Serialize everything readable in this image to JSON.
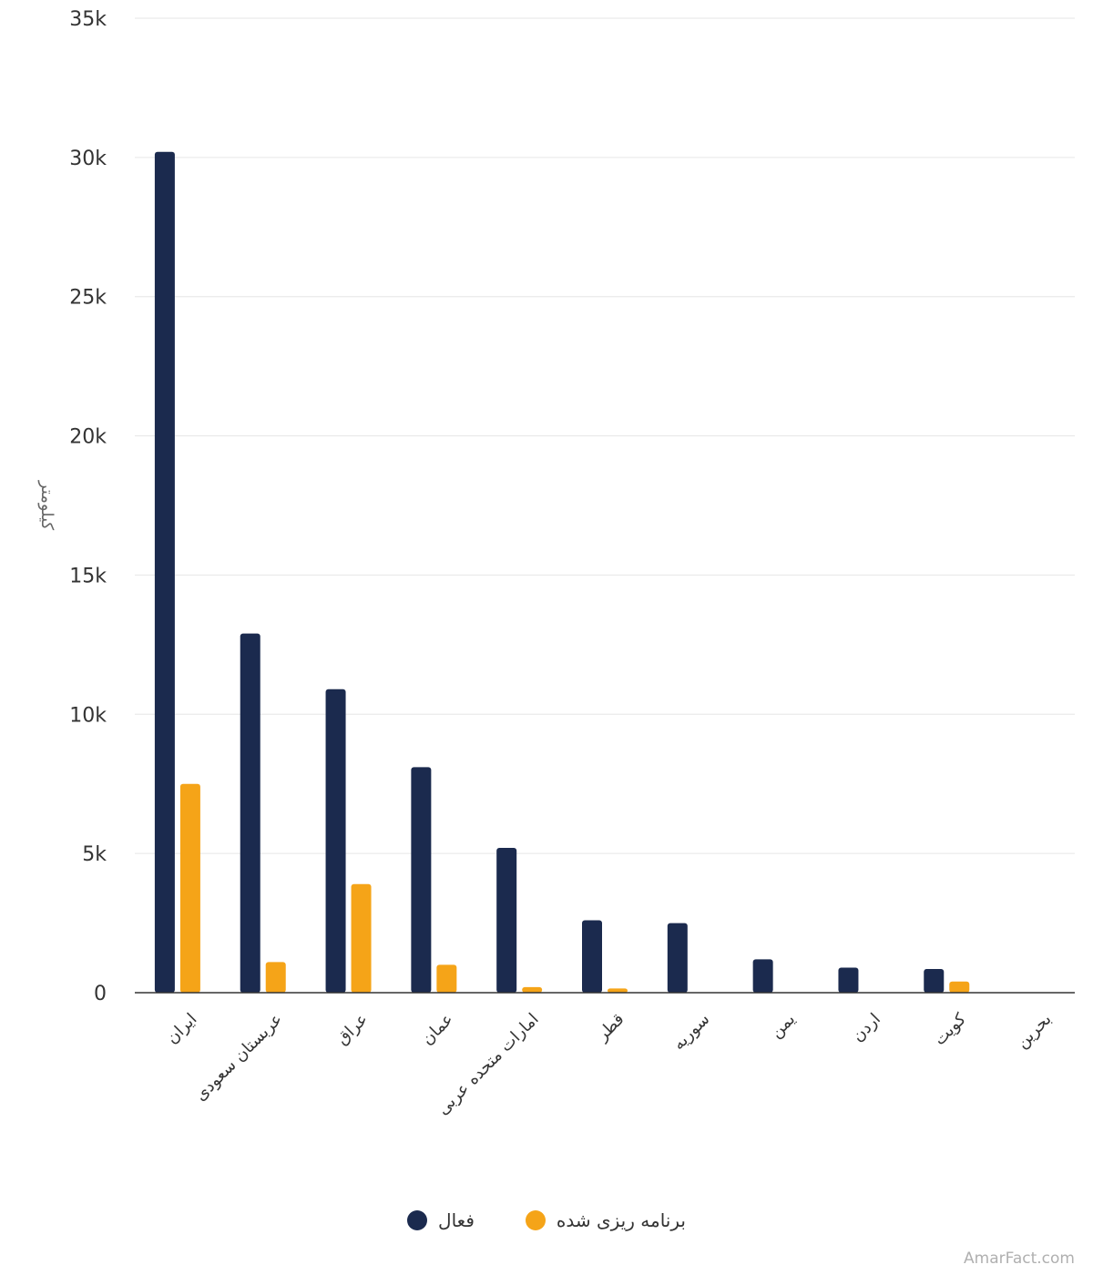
{
  "chart_data": {
    "type": "bar",
    "ylabel": "کیلومتر",
    "ylim": [
      0,
      35000
    ],
    "yticks": [
      {
        "value": 0,
        "label": "0"
      },
      {
        "value": 5000,
        "label": "5k"
      },
      {
        "value": 10000,
        "label": "10k"
      },
      {
        "value": 15000,
        "label": "15k"
      },
      {
        "value": 20000,
        "label": "20k"
      },
      {
        "value": 25000,
        "label": "25k"
      },
      {
        "value": 30000,
        "label": "30k"
      },
      {
        "value": 35000,
        "label": "35k"
      }
    ],
    "categories": [
      "ایران",
      "عربستان سعودی",
      "عراق",
      "عمان",
      "امارات متحده عربی",
      "قطر",
      "سوریه",
      "یمن",
      "اردن",
      "کویت",
      "بحرین"
    ],
    "series": [
      {
        "name": "فعال",
        "color": "#1b2a4e",
        "values": [
          30200,
          12900,
          10900,
          8100,
          5200,
          2600,
          2500,
          1200,
          900,
          850,
          0
        ]
      },
      {
        "name": "برنامه ریزی شده",
        "color": "#f5a418",
        "values": [
          7500,
          1100,
          3900,
          1000,
          200,
          150,
          0,
          0,
          0,
          400,
          0
        ]
      }
    ],
    "grid": true,
    "legend_position": "bottom"
  },
  "legend": {
    "items": [
      {
        "label": "فعال",
        "color": "#1b2a4e"
      },
      {
        "label": "برنامه ریزی شده",
        "color": "#f5a418"
      }
    ]
  },
  "watermark": "AmarFact.com"
}
